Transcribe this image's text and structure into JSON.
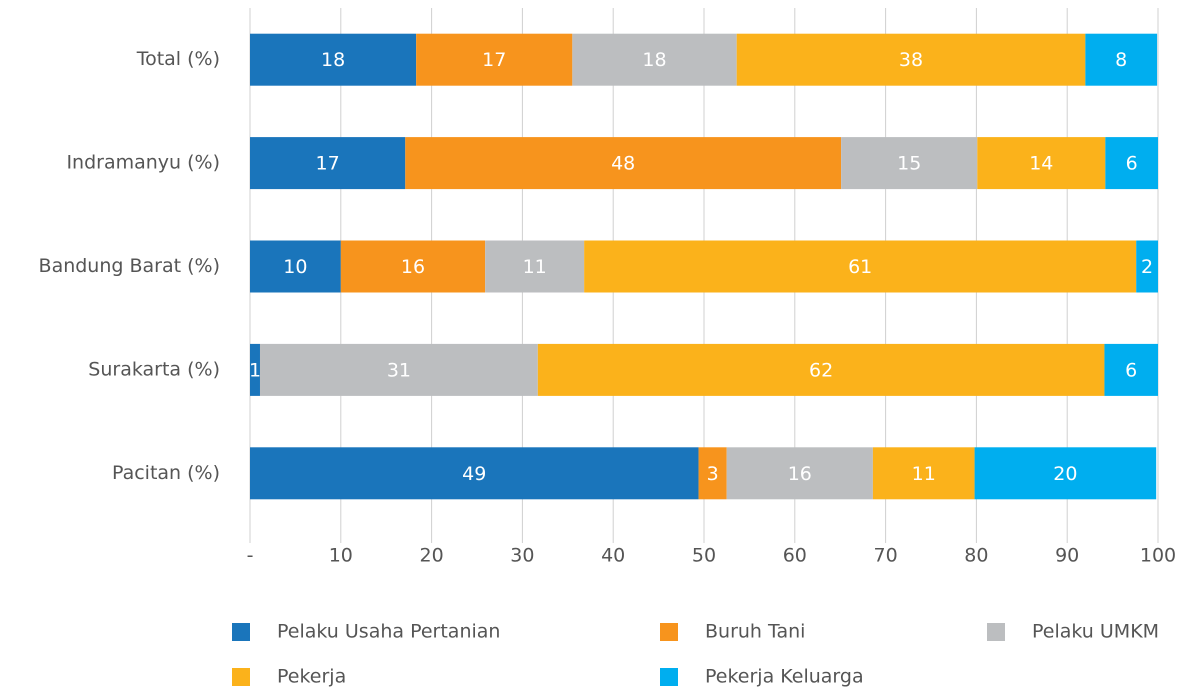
{
  "chart_data": {
    "type": "stacked-barh",
    "categories": [
      "Total (%)",
      "Indramanyu (%)",
      "Bandung Barat (%)",
      "Surakarta (%)",
      "Pacitan (%)"
    ],
    "series": [
      {
        "name": "Pelaku Usaha Pertanian",
        "color": "#1a75bb",
        "values": [
          18.3,
          17.1,
          10.0,
          1.1,
          49.4
        ],
        "value_labels": [
          "18",
          "17",
          "10",
          "1",
          "49"
        ]
      },
      {
        "name": "Buruh Tani",
        "color": "#f7941d",
        "values": [
          17.2,
          48.0,
          15.9,
          0,
          3.1
        ],
        "value_labels": [
          "17",
          "48",
          "16",
          null,
          "3"
        ]
      },
      {
        "name": "Pelaku UMKM",
        "color": "#bcbec0",
        "values": [
          18.1,
          15.0,
          10.9,
          30.6,
          16.1
        ],
        "value_labels": [
          "18",
          "15",
          "11",
          "31",
          "16"
        ]
      },
      {
        "name": "Pekerja",
        "color": "#fbb21b",
        "values": [
          38.4,
          14.1,
          60.8,
          62.4,
          11.2
        ],
        "value_labels": [
          "38",
          "14",
          "61",
          "62",
          "11"
        ]
      },
      {
        "name": "Pekerja Keluarga",
        "color": "#00aeef",
        "values": [
          7.9,
          5.8,
          2.4,
          5.9,
          20.0
        ],
        "value_labels": [
          "8",
          "6",
          "2",
          "6",
          "20"
        ]
      }
    ],
    "xlim": [
      0,
      100
    ],
    "xticks": [
      {
        "value": 0,
        "label": "-"
      },
      10,
      20,
      30,
      40,
      50,
      60,
      70,
      80,
      90,
      100
    ],
    "grid": true,
    "legend": "bottom"
  }
}
